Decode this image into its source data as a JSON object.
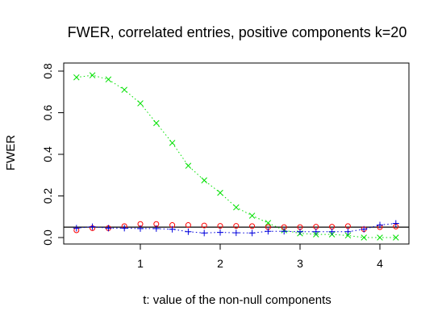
{
  "chart_data": {
    "type": "scatter",
    "title": "FWER, correlated entries, positive components k=20",
    "xlabel": "t:  value of the non-null components",
    "ylabel": "FWER",
    "xlim": [
      0.2,
      4.2
    ],
    "ylim": [
      0.0,
      0.8
    ],
    "xticks": [
      1,
      2,
      3,
      4
    ],
    "yticks": [
      0.0,
      0.2,
      0.4,
      0.6,
      0.8
    ],
    "ytick_labels": [
      "0.0",
      "0.2",
      "0.4",
      "0.6",
      "0.8"
    ],
    "hline": 0.05,
    "x": [
      0.2,
      0.4,
      0.6,
      0.8,
      1.0,
      1.2,
      1.4,
      1.6,
      1.8,
      2.0,
      2.2,
      2.4,
      2.6,
      2.8,
      3.0,
      3.2,
      3.4,
      3.6,
      3.8,
      4.0,
      4.2
    ],
    "series": [
      {
        "marker": "x",
        "color": "#00e000",
        "line": "dotted",
        "values": [
          0.77,
          0.78,
          0.76,
          0.71,
          0.645,
          0.55,
          0.455,
          0.345,
          0.275,
          0.215,
          0.145,
          0.105,
          0.07,
          0.035,
          0.02,
          0.015,
          0.015,
          0.01,
          0.0,
          0.0,
          0.0
        ]
      },
      {
        "marker": "o",
        "color": "#ff0000",
        "line": "none",
        "values": [
          0.035,
          0.045,
          0.045,
          0.055,
          0.065,
          0.065,
          0.06,
          0.06,
          0.058,
          0.056,
          0.056,
          0.055,
          0.05,
          0.05,
          0.05,
          0.052,
          0.052,
          0.055,
          0.04,
          0.05,
          0.053
        ]
      },
      {
        "marker": "+",
        "color": "#0000dd",
        "line": "dotted",
        "values": [
          0.045,
          0.052,
          0.045,
          0.045,
          0.043,
          0.043,
          0.04,
          0.028,
          0.022,
          0.025,
          0.023,
          0.022,
          0.03,
          0.03,
          0.028,
          0.028,
          0.028,
          0.028,
          0.04,
          0.06,
          0.068
        ]
      }
    ]
  }
}
